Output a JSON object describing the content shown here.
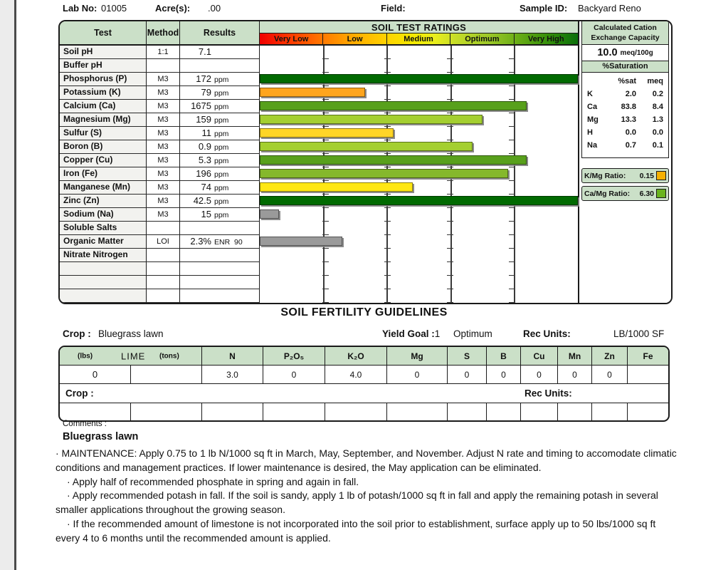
{
  "header": {
    "lab_no_label": "Lab No:",
    "lab_no": "01005",
    "acres_label": "Acre(s):",
    "acres": ".00",
    "field_label": "Field:",
    "sample_id_label": "Sample ID:",
    "sample_id": "Backyard Reno"
  },
  "soil_table": {
    "col_test": "Test",
    "col_method": "Method",
    "col_results": "Results",
    "ratings_title": "SOIL TEST RATINGS",
    "rating_levels": [
      "Very Low",
      "Low",
      "Medium",
      "Optimum",
      "Very High"
    ],
    "rows": [
      {
        "test": "Soil pH",
        "method": "1:1",
        "result": "7.1",
        "unit": "",
        "bar_pct": 0,
        "bar_color": ""
      },
      {
        "test": "Buffer pH",
        "method": "",
        "result": "",
        "unit": "",
        "bar_pct": 0,
        "bar_color": ""
      },
      {
        "test": "Phosphorus (P)",
        "method": "M3",
        "result": "172",
        "unit": "ppm",
        "bar_pct": 100,
        "bar_color": "#016a01"
      },
      {
        "test": "Potassium (K)",
        "method": "M3",
        "result": "79",
        "unit": "ppm",
        "bar_pct": 33,
        "bar_color": "#ffa51e"
      },
      {
        "test": "Calcium (Ca)",
        "method": "M3",
        "result": "1675",
        "unit": "ppm",
        "bar_pct": 84,
        "bar_color": "#58a01c"
      },
      {
        "test": "Magnesium (Mg)",
        "method": "M3",
        "result": "159",
        "unit": "ppm",
        "bar_pct": 70,
        "bar_color": "#a4cf30"
      },
      {
        "test": "Sulfur (S)",
        "method": "M3",
        "result": "11",
        "unit": "ppm",
        "bar_pct": 42,
        "bar_color": "#ffd527"
      },
      {
        "test": "Boron (B)",
        "method": "M3",
        "result": "0.9",
        "unit": "ppm",
        "bar_pct": 67,
        "bar_color": "#a4cf30"
      },
      {
        "test": "Copper (Cu)",
        "method": "M3",
        "result": "5.3",
        "unit": "ppm",
        "bar_pct": 84,
        "bar_color": "#58a01c"
      },
      {
        "test": "Iron (Fe)",
        "method": "M3",
        "result": "196",
        "unit": "ppm",
        "bar_pct": 78,
        "bar_color": "#85b82c"
      },
      {
        "test": "Manganese (Mn)",
        "method": "M3",
        "result": "74",
        "unit": "ppm",
        "bar_pct": 48,
        "bar_color": "#ffe713"
      },
      {
        "test": "Zinc (Zn)",
        "method": "M3",
        "result": "42.5",
        "unit": "ppm",
        "bar_pct": 100,
        "bar_color": "#016a01"
      },
      {
        "test": "Sodium (Na)",
        "method": "M3",
        "result": "15",
        "unit": "ppm",
        "bar_pct": 6,
        "bar_color": "#9a9a9a"
      },
      {
        "test": "Soluble Salts",
        "method": "",
        "result": "",
        "unit": "",
        "bar_pct": 0,
        "bar_color": ""
      },
      {
        "test": "Organic Matter",
        "method": "LOI",
        "result": "2.3%",
        "unit": "ENR  90",
        "bar_pct": 26,
        "bar_color": "#9a9a9a"
      },
      {
        "test": "Nitrate Nitrogen",
        "method": "",
        "result": "",
        "unit": "",
        "bar_pct": 0,
        "bar_color": ""
      },
      {
        "test": "",
        "method": "",
        "result": "",
        "unit": "",
        "bar_pct": 0,
        "bar_color": ""
      },
      {
        "test": "",
        "method": "",
        "result": "",
        "unit": "",
        "bar_pct": 0,
        "bar_color": ""
      },
      {
        "test": "",
        "method": "",
        "result": "",
        "unit": "",
        "bar_pct": 0,
        "bar_color": ""
      }
    ]
  },
  "cec_panel": {
    "title_line1": "Calculated Cation",
    "title_line2": "Exchange Capacity",
    "value": "10.0",
    "value_unit": "meq/100g",
    "saturation_title": "%Saturation",
    "sat_col1": "%sat",
    "sat_col2": "meq",
    "saturation": [
      {
        "el": "K",
        "sat": "2.0",
        "meq": "0.2"
      },
      {
        "el": "Ca",
        "sat": "83.8",
        "meq": "8.4"
      },
      {
        "el": "Mg",
        "sat": "13.3",
        "meq": "1.3"
      },
      {
        "el": "H",
        "sat": "0.0",
        "meq": "0.0"
      },
      {
        "el": "Na",
        "sat": "0.7",
        "meq": "0.1"
      }
    ]
  },
  "ratios": [
    {
      "label": "K/Mg Ratio:",
      "value": "0.15",
      "color": "#f5b000"
    },
    {
      "label": "Ca/Mg Ratio:",
      "value": "6.30",
      "color": "#6ab41e"
    }
  ],
  "guidelines": {
    "title": "SOIL FERTILITY GUIDELINES",
    "crop_label": "Crop :",
    "crop": "Bluegrass lawn",
    "yield_label": "Yield Goal :",
    "yield_value": "1",
    "yield_rating": "Optimum",
    "rec_units_label": "Rec Units:",
    "rec_units": "LB/1000 SF",
    "lime": {
      "lbs_label": "(lbs)",
      "name": "LIME",
      "tons_label": "(tons)",
      "lbs_value": "0",
      "tons_value": ""
    },
    "nutrients": [
      {
        "label": "N",
        "value": "3.0"
      },
      {
        "label": "P₂O₅",
        "value": "0"
      },
      {
        "label": "K₂O",
        "value": "4.0"
      },
      {
        "label": "Mg",
        "value": "0"
      },
      {
        "label": "S",
        "value": "0"
      },
      {
        "label": "B",
        "value": "0"
      },
      {
        "label": "Cu",
        "value": "0"
      },
      {
        "label": "Mn",
        "value": "0"
      },
      {
        "label": "Zn",
        "value": "0"
      },
      {
        "label": "Fe",
        "value": ""
      }
    ],
    "crop2_label": "Crop :",
    "rec_units2_label": "Rec Units:"
  },
  "comments": {
    "label": "Comments :",
    "crop_heading": "Bluegrass lawn",
    "paragraphs": [
      "·  MAINTENANCE:  Apply 0.75 to 1 lb N/1000 sq ft in March, May, September, and November.  Adjust N rate and timing to accomodate climatic conditions and management practices.  If lower maintenance is desired, the May application can be eliminated.",
      "·  Apply half of recommended phosphate in spring and again in fall.",
      "·  Apply recommended potash in fall. If the soil is sandy, apply 1 lb of potash/1000 sq ft in fall and apply the remaining potash in several smaller applications throughout the growing season.",
      "·  If the recommended amount of limestone is not incorporated into the soil prior to establishment, surface apply up to 50 lbs/1000 sq ft every 4 to 6 months until the recommended amount is applied."
    ]
  }
}
